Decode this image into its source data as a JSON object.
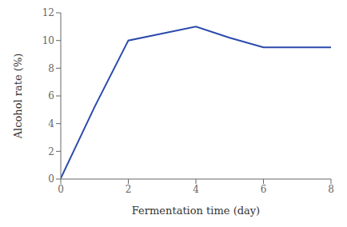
{
  "chart_data": {
    "type": "line",
    "xlabel": "Fermentation time (day)",
    "ylabel": "Alcohol rate (%)",
    "x": [
      0,
      1,
      2,
      3,
      4,
      5,
      6,
      7,
      8
    ],
    "values": [
      0.05,
      5.2,
      10.0,
      10.5,
      11.0,
      10.2,
      9.5,
      9.5,
      9.5
    ],
    "color": "#2b4aab",
    "xlim": [
      0,
      8
    ],
    "ylim": [
      0,
      12
    ],
    "xticks": [
      0,
      2,
      4,
      6,
      8
    ],
    "yticks": [
      0,
      2,
      4,
      6,
      8,
      10,
      12
    ],
    "grid": false
  }
}
